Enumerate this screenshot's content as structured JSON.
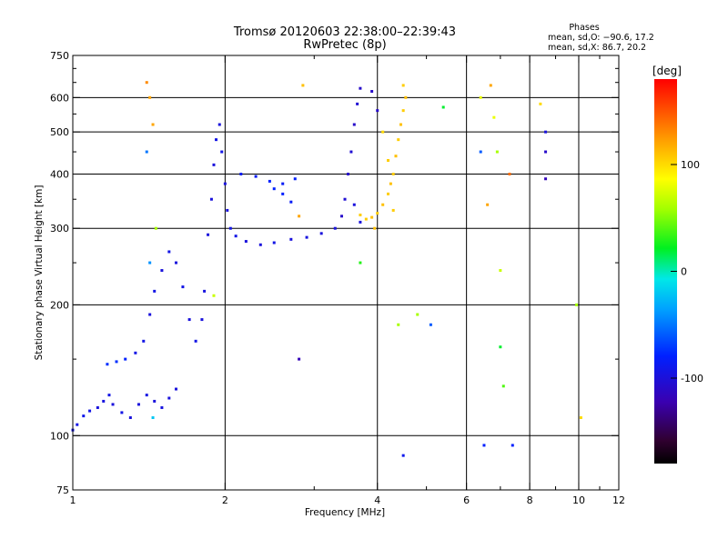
{
  "chart_data": {
    "type": "scatter",
    "title_line1": "Tromsø 20120603 22:38:00–22:39:43",
    "title_line2": "RwPretec (8p)",
    "xlabel": "Frequency [MHz]",
    "ylabel": "Stationary phase Virtual Height [km]",
    "x_scale": "log",
    "y_scale": "log",
    "xlim": [
      1,
      12
    ],
    "ylim": [
      75,
      750
    ],
    "xticks": [
      1,
      2,
      4,
      6,
      8,
      10,
      12
    ],
    "minor_xticks": [
      3,
      5,
      7,
      9,
      11
    ],
    "yticks": [
      75,
      100,
      200,
      300,
      400,
      500,
      600,
      750
    ],
    "minor_yticks": [
      150,
      250,
      350,
      450,
      550,
      650,
      700
    ],
    "grid_x": [
      2,
      4,
      6,
      8,
      10
    ],
    "grid_y": [
      100,
      200,
      300,
      400,
      500,
      600
    ],
    "phases": {
      "title": "Phases",
      "line_o": "mean, sd,O: −90.6, 17.2",
      "line_x": "mean, sd,X:  86.7, 20.2"
    },
    "colorbar": {
      "label": "[deg]",
      "range": [
        -180,
        180
      ],
      "ticks": [
        100,
        0,
        -100
      ]
    },
    "series": [
      {
        "points": [
          [
            1.0,
            103,
            -95
          ],
          [
            1.02,
            106,
            -95
          ],
          [
            1.05,
            111,
            -92
          ],
          [
            1.08,
            114,
            -95
          ],
          [
            1.12,
            116,
            -100
          ],
          [
            1.15,
            120,
            -98
          ],
          [
            1.18,
            124,
            -95
          ],
          [
            1.2,
            118,
            -100
          ],
          [
            1.25,
            113,
            -95
          ],
          [
            1.3,
            110,
            -100
          ],
          [
            1.35,
            118,
            -100
          ],
          [
            1.4,
            124,
            -96
          ],
          [
            1.45,
            120,
            -100
          ],
          [
            1.5,
            116,
            -98
          ],
          [
            1.55,
            122,
            -100
          ],
          [
            1.6,
            128,
            -100
          ],
          [
            1.17,
            146,
            -75
          ],
          [
            1.22,
            148,
            -75
          ],
          [
            1.27,
            150,
            -80
          ],
          [
            1.33,
            155,
            -95
          ],
          [
            1.38,
            165,
            -95
          ],
          [
            1.42,
            190,
            -100
          ],
          [
            1.45,
            215,
            -95
          ],
          [
            1.5,
            240,
            -100
          ],
          [
            1.55,
            265,
            -95
          ],
          [
            1.6,
            250,
            -100
          ],
          [
            1.65,
            220,
            -95
          ],
          [
            1.7,
            185,
            -100
          ],
          [
            1.75,
            165,
            -95
          ],
          [
            1.8,
            185,
            -100
          ],
          [
            1.82,
            215,
            -98
          ],
          [
            1.85,
            290,
            -100
          ],
          [
            1.88,
            350,
            -100
          ],
          [
            1.9,
            420,
            -100
          ],
          [
            1.92,
            480,
            -95
          ],
          [
            1.95,
            520,
            -100
          ],
          [
            1.97,
            450,
            -95
          ],
          [
            2.0,
            380,
            -100
          ],
          [
            2.02,
            330,
            -100
          ],
          [
            2.05,
            300,
            -95
          ],
          [
            2.1,
            288,
            -95
          ],
          [
            2.2,
            280,
            -100
          ],
          [
            2.35,
            275,
            -100
          ],
          [
            2.5,
            278,
            -95
          ],
          [
            2.7,
            283,
            -100
          ],
          [
            2.9,
            286,
            -98
          ],
          [
            3.1,
            292,
            -100
          ],
          [
            3.3,
            300,
            -100
          ],
          [
            3.4,
            320,
            -110
          ],
          [
            3.45,
            350,
            -105
          ],
          [
            3.5,
            400,
            -110
          ],
          [
            3.55,
            450,
            -105
          ],
          [
            3.6,
            520,
            -110
          ],
          [
            3.65,
            580,
            -105
          ],
          [
            3.7,
            630,
            -110
          ],
          [
            3.6,
            340,
            -100
          ],
          [
            3.7,
            310,
            -100
          ],
          [
            2.15,
            400,
            -85
          ],
          [
            2.3,
            395,
            -85
          ],
          [
            2.45,
            385,
            -80
          ],
          [
            2.6,
            380,
            -85
          ],
          [
            2.75,
            390,
            -82
          ],
          [
            2.6,
            360,
            -80
          ],
          [
            2.7,
            345,
            -85
          ],
          [
            2.5,
            370,
            -80
          ],
          [
            3.7,
            322,
            105
          ],
          [
            3.8,
            315,
            105
          ],
          [
            3.9,
            318,
            110
          ],
          [
            4.0,
            325,
            105
          ],
          [
            4.1,
            340,
            110
          ],
          [
            4.2,
            360,
            105
          ],
          [
            4.25,
            380,
            110
          ],
          [
            4.3,
            400,
            105
          ],
          [
            4.35,
            440,
            110
          ],
          [
            4.4,
            480,
            105
          ],
          [
            4.45,
            520,
            110
          ],
          [
            4.5,
            560,
            105
          ],
          [
            4.55,
            600,
            110
          ],
          [
            4.5,
            640,
            105
          ],
          [
            4.2,
            430,
            105
          ],
          [
            4.1,
            500,
            100
          ],
          [
            4.0,
            560,
            -110
          ],
          [
            3.9,
            620,
            -110
          ],
          [
            3.95,
            300,
            110
          ],
          [
            4.3,
            330,
            105
          ],
          [
            1.4,
            650,
            130
          ],
          [
            1.42,
            600,
            120
          ],
          [
            1.44,
            520,
            120
          ],
          [
            1.4,
            450,
            -50
          ],
          [
            1.46,
            300,
            60
          ],
          [
            1.42,
            250,
            -40
          ],
          [
            1.44,
            110,
            -20
          ],
          [
            2.8,
            320,
            120
          ],
          [
            2.85,
            640,
            110
          ],
          [
            2.8,
            150,
            -120
          ],
          [
            3.7,
            250,
            30
          ],
          [
            4.4,
            180,
            60
          ],
          [
            4.5,
            90,
            -90
          ],
          [
            5.1,
            180,
            -60
          ],
          [
            5.4,
            570,
            20
          ],
          [
            6.4,
            600,
            80
          ],
          [
            6.4,
            450,
            -60
          ],
          [
            6.6,
            340,
            120
          ],
          [
            6.7,
            640,
            120
          ],
          [
            6.8,
            540,
            80
          ],
          [
            6.9,
            450,
            60
          ],
          [
            7.0,
            240,
            70
          ],
          [
            7.0,
            160,
            20
          ],
          [
            7.1,
            130,
            40
          ],
          [
            7.3,
            400,
            140
          ],
          [
            8.4,
            580,
            100
          ],
          [
            8.6,
            500,
            -100
          ],
          [
            8.6,
            390,
            -120
          ],
          [
            8.6,
            450,
            -110
          ],
          [
            9.9,
            200,
            60
          ],
          [
            10.1,
            110,
            100
          ],
          [
            6.5,
            95,
            -80
          ],
          [
            7.4,
            95,
            -80
          ],
          [
            4.8,
            190,
            60
          ],
          [
            1.9,
            210,
            70
          ]
        ]
      }
    ]
  }
}
